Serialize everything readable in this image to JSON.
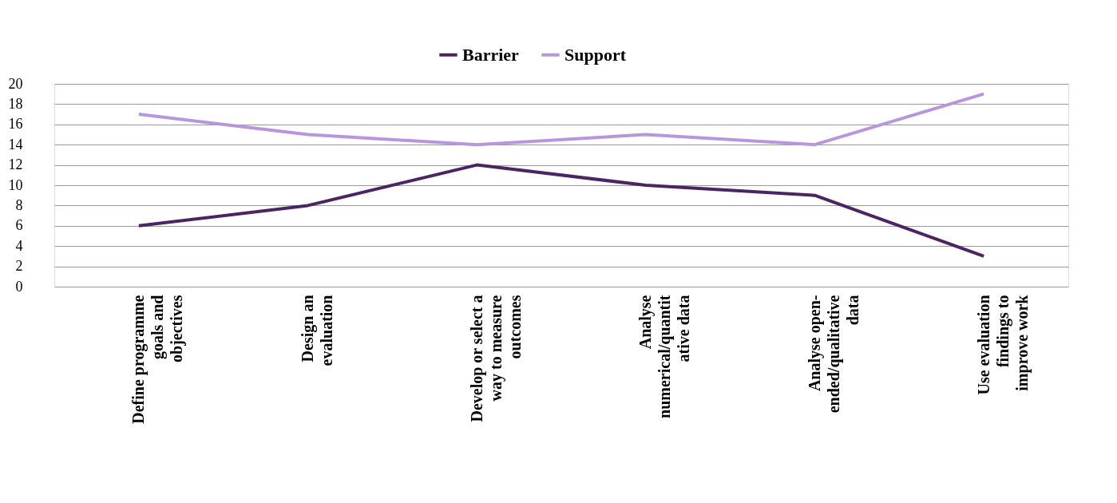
{
  "chart_data": {
    "type": "line",
    "categories": [
      "Define programme\ngoals and\nobjectives",
      "Design an\nevaluation",
      "Develop or select a\nway to measure\noutcomes",
      "Analyse\nnumerical/quantit\native data",
      "Analyse open-\nended/qualitative\ndata",
      "Use evaluation\nfindings to\nimprove  work"
    ],
    "series": [
      {
        "name": "Barrier",
        "color": "#4b2563",
        "values": [
          6,
          8,
          12,
          10,
          9,
          3
        ]
      },
      {
        "name": "Support",
        "color": "#b896dd",
        "values": [
          17,
          15,
          14,
          15,
          14,
          19
        ]
      }
    ],
    "ylim": [
      0,
      20
    ],
    "yticks": [
      0,
      2,
      4,
      6,
      8,
      10,
      12,
      14,
      16,
      18,
      20
    ],
    "grid": "y",
    "legend": "top",
    "marker": "none",
    "line_style": "solid"
  }
}
